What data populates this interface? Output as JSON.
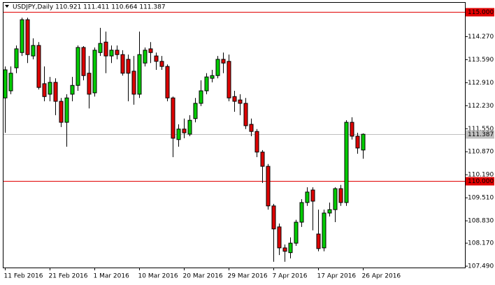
{
  "chart_data": {
    "type": "candlestick",
    "title": "USDJPY,Daily  110.921 111.411 110.664 111.387",
    "categories": [
      "11 Feb 2016",
      null,
      null,
      null,
      null,
      null,
      null,
      null,
      "21 Feb 2016",
      null,
      null,
      null,
      null,
      null,
      null,
      null,
      "1 Mar 2016",
      null,
      null,
      null,
      null,
      null,
      null,
      null,
      "10 Mar 2016",
      null,
      null,
      null,
      null,
      null,
      null,
      null,
      "20 Mar 2016",
      null,
      null,
      null,
      null,
      null,
      null,
      null,
      "29 Mar 2016",
      null,
      null,
      null,
      null,
      null,
      null,
      null,
      "7 Apr 2016",
      null,
      null,
      null,
      null,
      null,
      null,
      null,
      "17 Apr 2016",
      null,
      null,
      null,
      null,
      null,
      null,
      null,
      "26 Apr 2016"
    ],
    "open": [
      112.46,
      112.67,
      113.35,
      113.8,
      114.77,
      113.7,
      114.01,
      112.88,
      112.57,
      112.92,
      112.36,
      111.74,
      112.57,
      112.83,
      113.95,
      113.19,
      112.61,
      113.8,
      114.11,
      113.7,
      113.87,
      113.74,
      113.6,
      113.25,
      112.57,
      113.49,
      113.91,
      113.7,
      113.54,
      113.39,
      112.46,
      111.23,
      111.54,
      111.39,
      111.85,
      112.3,
      112.67,
      113.04,
      113.12,
      113.6,
      113.54,
      112.5,
      112.4,
      112.3,
      111.68,
      111.47,
      110.86,
      110.44,
      109.27,
      108.65,
      108.03,
      107.89,
      108.17,
      108.79,
      109.37,
      109.74,
      108.44,
      108.03,
      109.06,
      109.16,
      109.78,
      109.37,
      111.74,
      111.33,
      110.921
    ],
    "high": [
      113.39,
      113.39,
      114.01,
      114.83,
      114.83,
      114.22,
      114.11,
      113.39,
      113.08,
      113.04,
      112.46,
      112.57,
      113.08,
      114.01,
      113.99,
      113.7,
      113.95,
      114.53,
      114.42,
      114.01,
      114.01,
      113.87,
      113.74,
      113.7,
      114.42,
      113.95,
      114.11,
      113.8,
      113.7,
      113.45,
      112.5,
      111.68,
      111.85,
      111.95,
      112.46,
      112.98,
      113.19,
      113.29,
      113.7,
      113.8,
      113.74,
      112.67,
      112.57,
      112.46,
      111.85,
      111.54,
      110.92,
      110.51,
      109.33,
      108.75,
      108.13,
      108.34,
      108.86,
      109.47,
      109.82,
      109.82,
      109.16,
      109.16,
      109.37,
      109.82,
      109.89,
      111.8,
      111.89,
      111.43,
      111.411
    ],
    "low": [
      111.43,
      112.57,
      113.19,
      113.7,
      113.49,
      113.6,
      112.71,
      112.36,
      112.36,
      111.95,
      111.6,
      111.02,
      112.36,
      112.67,
      112.98,
      112.15,
      112.5,
      113.7,
      113.19,
      113.49,
      113.6,
      113.12,
      112.36,
      112.26,
      112.46,
      113.39,
      113.49,
      113.29,
      113.29,
      112.36,
      110.71,
      111.02,
      111.27,
      111.33,
      111.74,
      112.22,
      112.57,
      112.92,
      113.04,
      113.19,
      112.36,
      112.05,
      111.95,
      111.54,
      111.33,
      110.71,
      109.95,
      109.16,
      107.62,
      107.82,
      107.62,
      107.72,
      108.09,
      108.65,
      109.27,
      108.55,
      107.93,
      107.93,
      108.96,
      108.79,
      109.27,
      109.27,
      111.23,
      110.81,
      110.664
    ],
    "close": [
      113.29,
      113.19,
      113.91,
      114.77,
      113.74,
      114.01,
      112.77,
      112.5,
      112.92,
      112.36,
      111.74,
      112.46,
      112.83,
      113.95,
      113.12,
      112.57,
      113.87,
      114.07,
      113.7,
      113.87,
      113.74,
      113.19,
      113.19,
      112.57,
      113.74,
      113.87,
      113.8,
      113.54,
      113.39,
      112.46,
      111.27,
      111.54,
      111.43,
      111.8,
      112.3,
      112.67,
      113.08,
      113.12,
      113.6,
      113.49,
      112.46,
      112.36,
      112.3,
      111.64,
      111.47,
      110.86,
      110.44,
      109.27,
      108.59,
      108.03,
      107.93,
      108.17,
      108.79,
      109.37,
      109.68,
      109.41,
      108.01,
      109.06,
      109.16,
      109.78,
      109.37,
      111.74,
      111.33,
      110.98,
      111.387
    ],
    "up_color": "#00cc00",
    "down_color": "#dd0000",
    "ylim": [
      107.45,
      115.27
    ],
    "yticks": [
      {
        "value": 107.49,
        "label": "107.490"
      },
      {
        "value": 108.17,
        "label": "108.170"
      },
      {
        "value": 108.83,
        "label": "108.830"
      },
      {
        "value": 109.51,
        "label": "109.510"
      },
      {
        "value": 110.19,
        "label": "110.190"
      },
      {
        "value": 110.87,
        "label": "110.870"
      },
      {
        "value": 111.55,
        "label": "111.550"
      },
      {
        "value": 112.23,
        "label": "112.230"
      },
      {
        "value": 112.91,
        "label": "112.910"
      },
      {
        "value": 113.59,
        "label": "113.590"
      },
      {
        "value": 114.27,
        "label": "114.270"
      }
    ],
    "hlines": [
      {
        "value": 115,
        "label": "115.000",
        "color": "#e00000"
      },
      {
        "value": 110,
        "label": "110.000",
        "color": "#e00000"
      },
      {
        "value": 111.387,
        "label": "111.387",
        "color": "#c0c0c0"
      }
    ]
  }
}
